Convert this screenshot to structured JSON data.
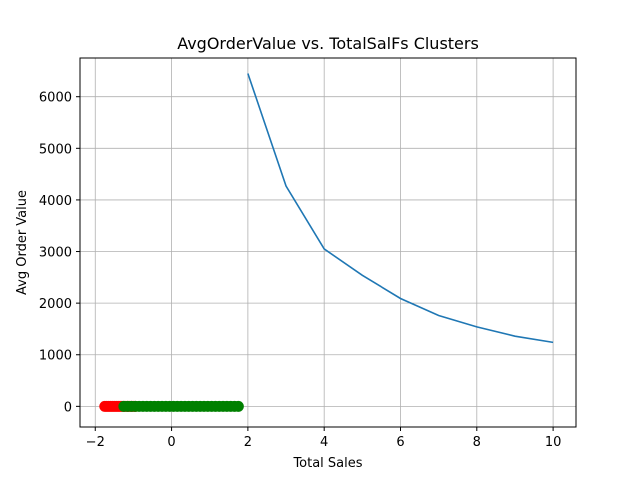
{
  "chart_data": {
    "type": "line",
    "title": "AvgOrderValue vs. TotalSalFs Clusters",
    "xlabel": "Total Sales",
    "ylabel": "Avg Order Value",
    "xlim": [
      -2.4,
      10.6
    ],
    "ylim": [
      -400,
      6750
    ],
    "xticks": [
      -2,
      0,
      2,
      4,
      6,
      8,
      10
    ],
    "yticks": [
      0,
      1000,
      2000,
      3000,
      4000,
      5000,
      6000
    ],
    "grid": true,
    "series": [
      {
        "type": "line",
        "color": "#1f77b4",
        "x": [
          2,
          3,
          4,
          5,
          6,
          7,
          8,
          9,
          10
        ],
        "y": [
          6450,
          4270,
          3050,
          2540,
          2090,
          1760,
          1540,
          1360,
          1240
        ]
      },
      {
        "type": "scatter",
        "color": "#ff0000",
        "x": [
          -1.75,
          -1.7,
          -1.65,
          -1.6,
          -1.55,
          -1.5,
          -1.45,
          -1.4,
          -1.35,
          -1.3,
          -1.25,
          -1.2,
          -1.15,
          -1.1,
          -1.05,
          -1.0,
          -0.95
        ],
        "y": [
          0,
          0,
          0,
          0,
          0,
          0,
          0,
          0,
          0,
          0,
          0,
          0,
          0,
          0,
          0,
          0,
          0
        ]
      },
      {
        "type": "scatter",
        "color": "#008000",
        "x": [
          -1.25,
          -1.15,
          -1.05,
          -0.95,
          -0.85,
          -0.75,
          -0.65,
          -0.55,
          -0.45,
          -0.35,
          -0.25,
          -0.15,
          -0.05,
          0.05,
          0.15,
          0.25,
          0.35,
          0.45,
          0.55,
          0.65,
          0.75,
          0.85,
          0.95,
          1.05,
          1.15,
          1.25,
          1.35,
          1.45,
          1.55,
          1.65,
          1.75
        ],
        "y": [
          0,
          0,
          0,
          0,
          0,
          0,
          0,
          0,
          0,
          0,
          0,
          0,
          0,
          0,
          0,
          0,
          0,
          0,
          0,
          0,
          0,
          0,
          0,
          0,
          0,
          0,
          0,
          0,
          0,
          0,
          0
        ]
      }
    ]
  }
}
